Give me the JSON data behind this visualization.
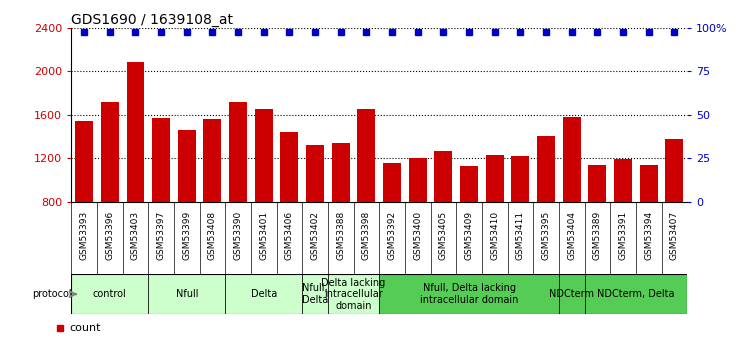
{
  "title": "GDS1690 / 1639108_at",
  "samples": [
    "GSM53393",
    "GSM53396",
    "GSM53403",
    "GSM53397",
    "GSM53399",
    "GSM53408",
    "GSM53390",
    "GSM53401",
    "GSM53406",
    "GSM53402",
    "GSM53388",
    "GSM53398",
    "GSM53392",
    "GSM53400",
    "GSM53405",
    "GSM53409",
    "GSM53410",
    "GSM53411",
    "GSM53395",
    "GSM53404",
    "GSM53389",
    "GSM53391",
    "GSM53394",
    "GSM53407"
  ],
  "counts": [
    1540,
    1720,
    2080,
    1570,
    1460,
    1560,
    1720,
    1650,
    1440,
    1320,
    1340,
    1650,
    1160,
    1200,
    1270,
    1130,
    1230,
    1220,
    1400,
    1580,
    1140,
    1190,
    1140,
    1380
  ],
  "ylim": [
    800,
    2400
  ],
  "bar_color": "#cc0000",
  "dot_color": "#0000cc",
  "ylabel_left_color": "#cc0000",
  "ylabel_right_color": "#0000cc",
  "title_fontsize": 10,
  "tick_fontsize": 6.5,
  "legend_fontsize": 8,
  "protocol_fontsize": 7,
  "protocol_groups": [
    {
      "label": "control",
      "start": 0,
      "end": 2,
      "light": true
    },
    {
      "label": "Nfull",
      "start": 3,
      "end": 5,
      "light": true
    },
    {
      "label": "Delta",
      "start": 6,
      "end": 8,
      "light": true
    },
    {
      "label": "Nfull,\nDelta",
      "start": 9,
      "end": 9,
      "light": true
    },
    {
      "label": "Delta lacking\nintracellular\ndomain",
      "start": 10,
      "end": 11,
      "light": true
    },
    {
      "label": "Nfull, Delta lacking\nintracellular domain",
      "start": 12,
      "end": 18,
      "light": false
    },
    {
      "label": "NDCterm",
      "start": 19,
      "end": 19,
      "light": false
    },
    {
      "label": "NDCterm, Delta",
      "start": 20,
      "end": 23,
      "light": false
    }
  ],
  "light_green": "#ccffcc",
  "dark_green": "#55cc55",
  "tick_bg": "#cccccc"
}
